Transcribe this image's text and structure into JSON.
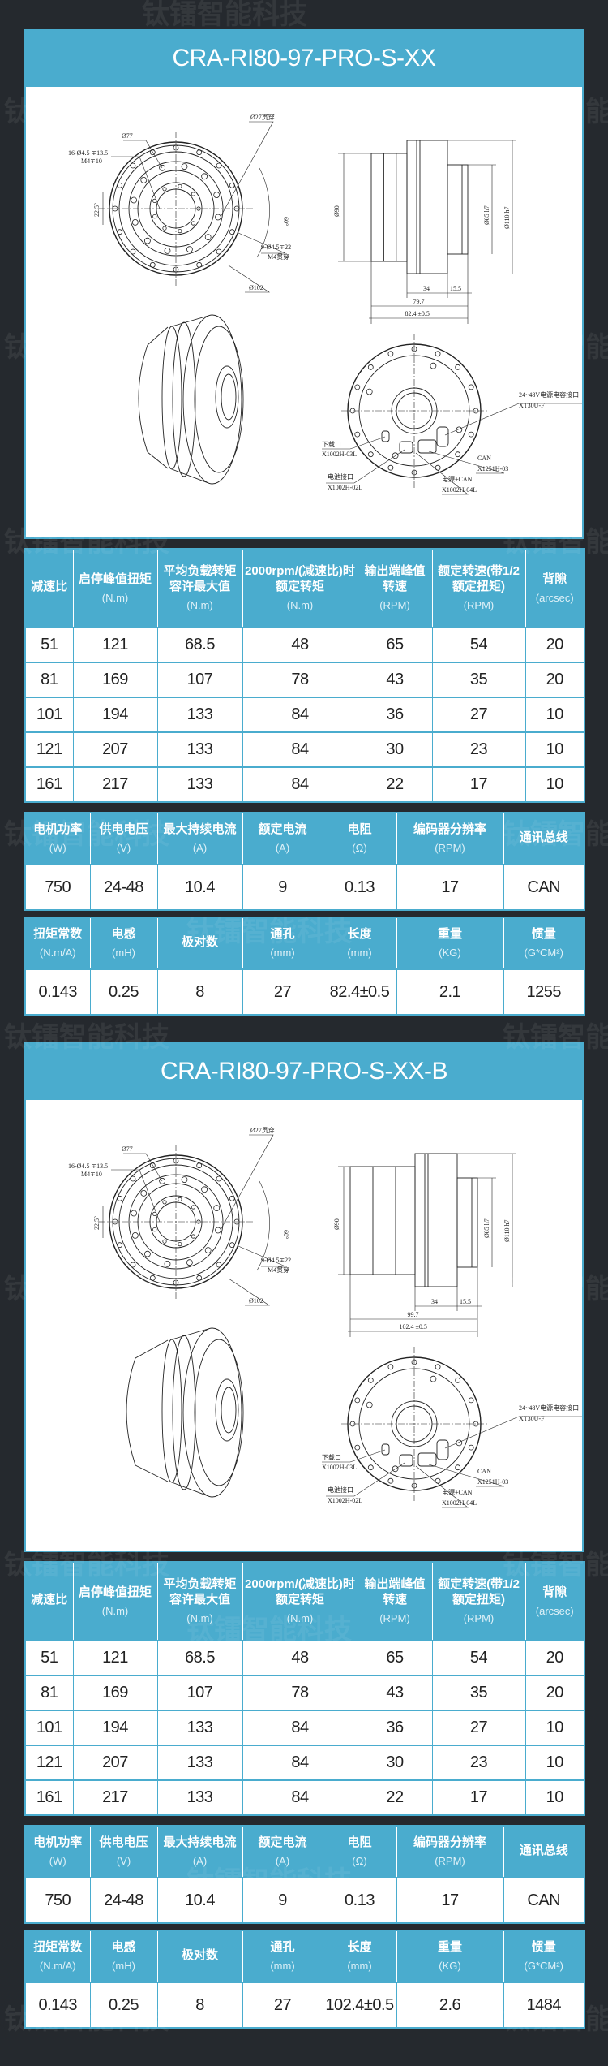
{
  "watermark": "钛镭智能科技",
  "colors": {
    "accent": "#4aacce",
    "background": "#25292e",
    "text": "#222222"
  },
  "spec_tables": {
    "reducer_headers": [
      {
        "label": "减速比",
        "unit": ""
      },
      {
        "label": "启停峰值扭矩",
        "unit": "(N.m)"
      },
      {
        "label": "平均负载转矩容许最大值",
        "unit": "(N.m)"
      },
      {
        "label": "2000rpm/(减速比)时额定转矩",
        "unit": "(N.m)"
      },
      {
        "label": "输出端峰值转速",
        "unit": "(RPM)"
      },
      {
        "label": "额定转速(带1/2额定扭矩)",
        "unit": "(RPM)"
      },
      {
        "label": "背隙",
        "unit": "(arcsec)"
      }
    ],
    "reducer_rows": [
      [
        "51",
        "121",
        "68.5",
        "48",
        "65",
        "54",
        "20"
      ],
      [
        "81",
        "169",
        "107",
        "78",
        "43",
        "35",
        "20"
      ],
      [
        "101",
        "194",
        "133",
        "84",
        "36",
        "27",
        "10"
      ],
      [
        "121",
        "207",
        "133",
        "84",
        "30",
        "23",
        "10"
      ],
      [
        "161",
        "217",
        "133",
        "84",
        "22",
        "17",
        "10"
      ]
    ],
    "motor_headers": [
      {
        "label": "电机功率",
        "unit": "(W)"
      },
      {
        "label": "供电电压",
        "unit": "(V)"
      },
      {
        "label": "最大持续电流",
        "unit": "(A)"
      },
      {
        "label": "额定电流",
        "unit": "(A)"
      },
      {
        "label": "电阻",
        "unit": "(Ω)"
      },
      {
        "label": "编码器分辨率",
        "unit": "(RPM)"
      },
      {
        "label": "通讯总线",
        "unit": ""
      }
    ],
    "physical_headers": [
      {
        "label": "扭矩常数",
        "unit": "(N.m/A)"
      },
      {
        "label": "电感",
        "unit": "(mH)"
      },
      {
        "label": "极对数",
        "unit": ""
      },
      {
        "label": "通孔",
        "unit": "(mm)"
      },
      {
        "label": "长度",
        "unit": "(mm)"
      },
      {
        "label": "重量",
        "unit": "(KG)"
      },
      {
        "label": "惯量",
        "unit": "(G*CM²)"
      }
    ]
  },
  "sections": [
    {
      "title": "CRA-RI80-97-PRO-S-XX",
      "drawing": {
        "front": {
          "d77": "Ø77",
          "holes16": "16-Ø4.5 ∓13.5",
          "holes16b": "M4∓10",
          "bore": "Ø27贯穿",
          "ang60": "60°",
          "ang22": "22.5°",
          "holes9": "9-Ø4.5∓22",
          "holes9b": "M4贯穿",
          "d102": "Ø102"
        },
        "side": {
          "d90": "Ø90",
          "d85": "Ø85 h7",
          "d110": "Ø110 h7",
          "l34": "34",
          "l155": "15.5",
          "inner": "79.7",
          "total": "82.4 ±0.5"
        },
        "rear": {
          "power": "24~48V电源电容接口",
          "power_part": "XT30U-F",
          "download": "下载口",
          "download_part": "X1002H-03L",
          "battery": "电池接口",
          "battery_part": "X1002H-02L",
          "pcan": "电源+CAN",
          "pcan_part": "X1002H-04L",
          "can": "CAN",
          "can_part": "X1251H-03"
        }
      },
      "motor_row": [
        "750",
        "24-48",
        "10.4",
        "9",
        "0.13",
        "17",
        "CAN"
      ],
      "physical_row": [
        "0.143",
        "0.25",
        "8",
        "27",
        "82.4±0.5",
        "2.1",
        "1255"
      ]
    },
    {
      "title": "CRA-RI80-97-PRO-S-XX-B",
      "drawing": {
        "front": {
          "d77": "Ø77",
          "holes16": "16-Ø4.5 ∓13.5",
          "holes16b": "M4∓10",
          "bore": "Ø27贯穿",
          "ang60": "60°",
          "ang22": "22.5°",
          "holes9": "9-Ø4.5∓22",
          "holes9b": "M4贯穿",
          "d102": "Ø102"
        },
        "side": {
          "d90": "Ø90",
          "d85": "Ø85 h7",
          "d110": "Ø110 h7",
          "l34": "34",
          "l155": "15.5",
          "inner": "99.7",
          "total": "102.4 ±0.5"
        },
        "rear": {
          "power": "24~48V电源电容接口",
          "power_part": "XT30U-F",
          "download": "下载口",
          "download_part": "X1002H-03L",
          "battery": "电池接口",
          "battery_part": "X1002H-02L",
          "pcan": "电源+CAN",
          "pcan_part": "X1002H-04L",
          "can": "CAN",
          "can_part": "X1251H-03"
        }
      },
      "motor_row": [
        "750",
        "24-48",
        "10.4",
        "9",
        "0.13",
        "17",
        "CAN"
      ],
      "physical_row": [
        "0.143",
        "0.25",
        "8",
        "27",
        "102.4±0.5",
        "2.6",
        "1484"
      ]
    }
  ]
}
